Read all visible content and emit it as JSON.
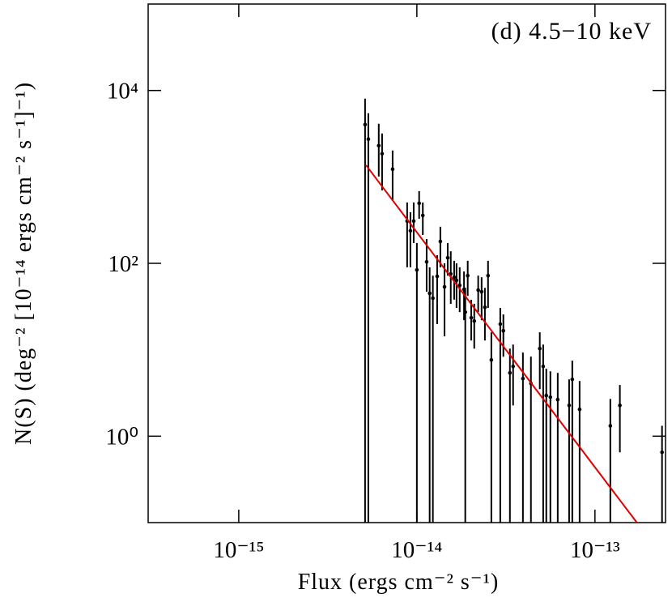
{
  "chart_data": {
    "type": "scatter",
    "annotation": "(d) 4.5−10 keV",
    "x_label": "Flux (ergs cm⁻² s⁻¹)",
    "y_label": "N(S) (deg⁻² [10⁻¹⁴ ergs cm⁻² s⁻¹]⁻¹)",
    "x_scale": "log",
    "y_scale": "log",
    "xlim": [
      3.1e-16,
      2.49e-13
    ],
    "ylim": [
      0.1,
      100000
    ],
    "xticks": [
      {
        "value": 1e-15,
        "label": "10⁻¹⁵"
      },
      {
        "value": 1e-14,
        "label": "10⁻¹⁴"
      },
      {
        "value": 1e-13,
        "label": "10⁻¹³"
      }
    ],
    "yticks": [
      {
        "value": 1,
        "label": "10⁰"
      },
      {
        "value": 100,
        "label": "10²"
      },
      {
        "value": 10000,
        "label": "10⁴"
      }
    ],
    "color": "#000000",
    "x": [
      5.12e-15,
      5.34e-15,
      6.11e-15,
      6.38e-15,
      7.31e-15,
      8.82e-15,
      9.2e-15,
      9.6e-15,
      1e-14,
      1.03e-14,
      1.08e-14,
      1.135e-14,
      1.18e-14,
      1.23e-14,
      1.3e-14,
      1.355e-14,
      1.43e-14,
      1.49e-14,
      1.55e-14,
      1.62e-14,
      1.67e-14,
      1.74e-14,
      1.84e-14,
      1.87e-14,
      1.93e-14,
      2.02e-14,
      2.1e-14,
      2.21e-14,
      2.31e-14,
      2.41e-14,
      2.51e-14,
      2.62e-14,
      2.94e-14,
      3.06e-14,
      3.33e-14,
      3.47e-14,
      3.94e-14,
      4.37e-14,
      4.9e-14,
      5.12e-14,
      5.33e-14,
      5.62e-14,
      6.18e-14,
      7.16e-14,
      7.46e-14,
      8.2e-14,
      1.22e-13,
      1.38e-13,
      2.38e-13
    ],
    "y": [
      4035,
      2735,
      2300,
      1853,
      1228,
      308,
      238,
      308,
      84,
      495,
      358,
      104,
      45,
      39.5,
      70.8,
      179,
      53.4,
      116,
      75.5,
      69,
      63.5,
      55.7,
      50,
      27.3,
      72,
      23.5,
      21.5,
      49,
      47,
      31,
      72,
      7.63,
      19.8,
      16.6,
      5.4,
      6.42,
      4.64,
      4.08,
      10.3,
      6.42,
      2.95,
      2.82,
      2.65,
      2.27,
      4.54,
      2.04,
      1.32,
      2.27,
      0.65
    ],
    "y_low": [
      0,
      0,
      1010,
      700,
      528,
      90,
      90,
      172,
      0,
      328,
      213,
      47,
      0,
      0,
      19.8,
      90,
      14.3,
      72,
      34,
      38,
      30.5,
      27.3,
      22,
      0,
      42,
      12.8,
      10.3,
      27.3,
      22,
      12.8,
      30.5,
      0,
      0,
      8.3,
      0,
      2.27,
      0,
      0,
      3.5,
      0,
      0,
      0,
      0,
      0,
      0,
      0,
      0,
      0.65,
      0
    ],
    "y_high": [
      8050,
      5460,
      4120,
      3180,
      2020,
      506,
      391,
      506,
      172,
      685,
      506,
      191,
      90,
      72,
      124,
      265,
      100,
      172,
      138,
      107,
      100,
      90,
      80.5,
      52,
      107,
      37.8,
      34,
      72,
      69,
      52,
      107,
      15.9,
      30.5,
      25.6,
      10.3,
      11.5,
      9.27,
      8.32,
      15.9,
      11.5,
      6.02,
      5.64,
      5.4,
      4.54,
      7.47,
      4.35,
      2.7,
      3.91,
      1.32
    ],
    "fit": {
      "color": "#e00000",
      "x": [
        5.18e-15,
        1.72e-13
      ],
      "y": [
        1368,
        0.1
      ]
    }
  }
}
